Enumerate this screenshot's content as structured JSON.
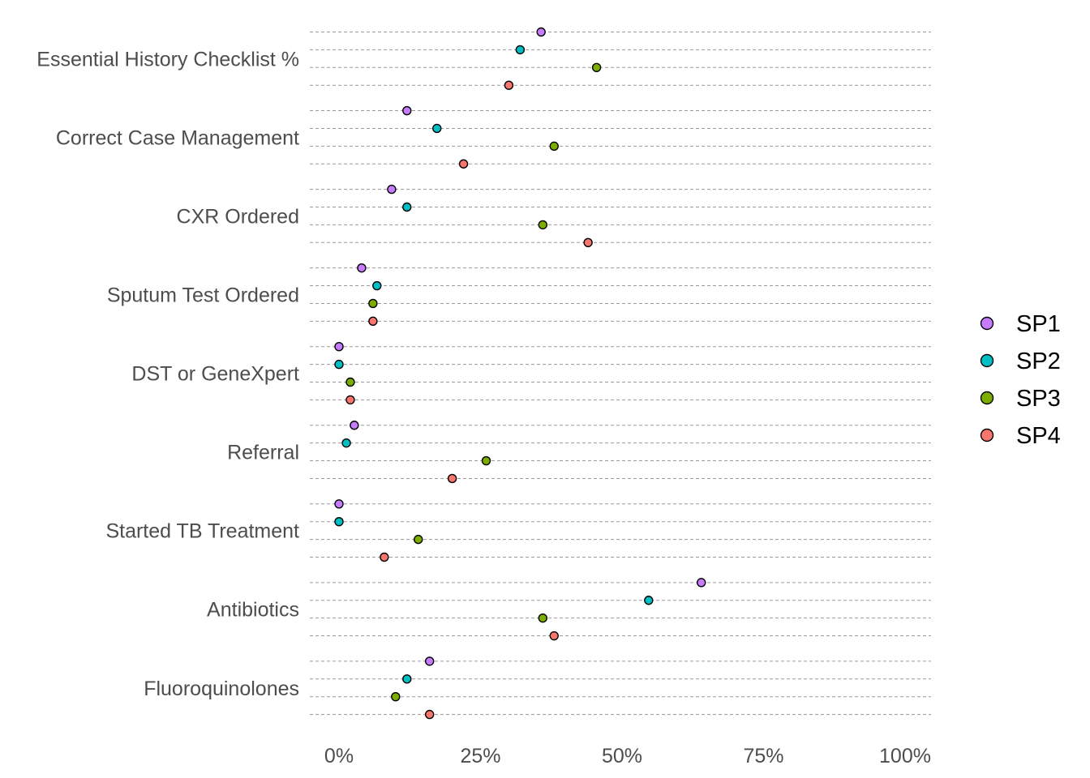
{
  "chart_data": {
    "type": "scatter",
    "orientation": "horizontal-dot",
    "title": "",
    "xlabel": "",
    "ylabel": "",
    "xlim": [
      -0.05,
      1.05
    ],
    "x_ticks": [
      0,
      0.25,
      0.5,
      0.75,
      1.0
    ],
    "x_tick_labels": [
      "0%",
      "25%",
      "50%",
      "75%",
      "100%"
    ],
    "grid": "dashed horizontal guides, one per series per category",
    "legend": "right",
    "categories": [
      "Essential History Checklist %",
      "Correct Case Management",
      "CXR Ordered",
      "Sputum Test Ordered",
      "DST or GeneXpert",
      "Referral",
      "Started TB Treatment",
      "Antibiotics",
      "Fluoroquinolones"
    ],
    "series": [
      {
        "name": "SP1",
        "color": "#c77cff",
        "values": [
          0.357,
          0.12,
          0.093,
          0.04,
          0.0,
          0.027,
          0.0,
          0.64,
          0.16
        ]
      },
      {
        "name": "SP2",
        "color": "#00bfc4",
        "values": [
          0.32,
          0.173,
          0.12,
          0.067,
          0.0,
          0.013,
          0.0,
          0.547,
          0.12
        ]
      },
      {
        "name": "SP3",
        "color": "#7cae00",
        "values": [
          0.455,
          0.38,
          0.36,
          0.06,
          0.02,
          0.26,
          0.14,
          0.36,
          0.1
        ]
      },
      {
        "name": "SP4",
        "color": "#f8766d",
        "values": [
          0.3,
          0.22,
          0.44,
          0.06,
          0.02,
          0.2,
          0.08,
          0.38,
          0.16
        ]
      }
    ]
  }
}
